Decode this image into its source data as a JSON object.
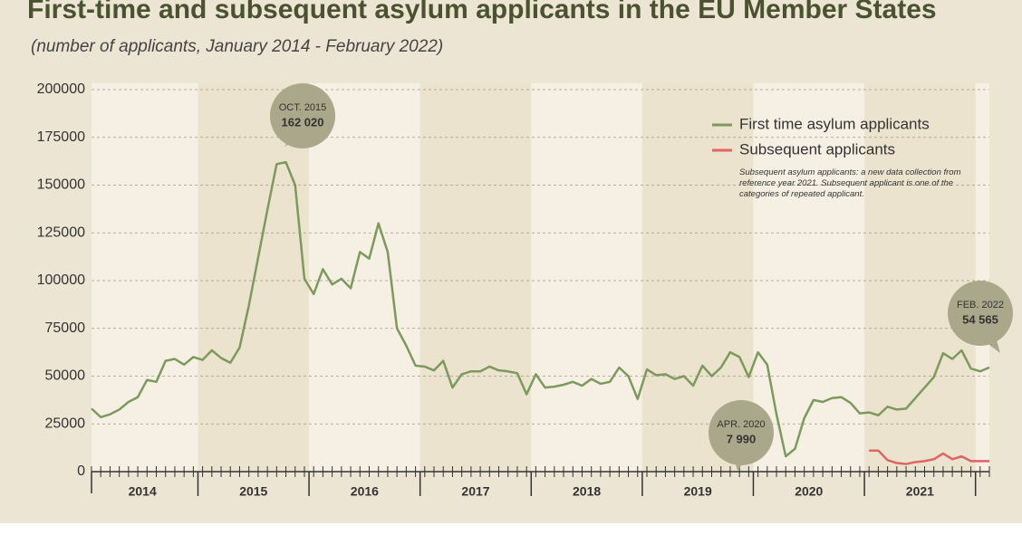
{
  "chart_data": {
    "type": "line",
    "title": "First-time and subsequent asylum applicants in the EU Member States",
    "subtitle": "(number of applicants, January 2014 - February 2022)",
    "categories": [
      null,
      null,
      null,
      null,
      null,
      null,
      "2014",
      null,
      null,
      null,
      null,
      null,
      null,
      null,
      null,
      null,
      null,
      null,
      "2015",
      null,
      null,
      null,
      null,
      null,
      null,
      null,
      null,
      null,
      null,
      null,
      "2016",
      null,
      null,
      null,
      null,
      null,
      null,
      null,
      null,
      null,
      null,
      null,
      "2017",
      null,
      null,
      null,
      null,
      null,
      null,
      null,
      null,
      null,
      null,
      null,
      "2018",
      null,
      null,
      null,
      null,
      null,
      null,
      null,
      null,
      null,
      null,
      null,
      "2019",
      null,
      null,
      null,
      null,
      null,
      null,
      null,
      null,
      null,
      null,
      null,
      "2020",
      null,
      null,
      null,
      null,
      null,
      null,
      null,
      null,
      null,
      null,
      null,
      "2021",
      null,
      null,
      null,
      null,
      null,
      null,
      null
    ],
    "series": [
      {
        "name": "First time asylum applicants",
        "color": "#7c9a5c",
        "values": [
          33000,
          28500,
          30000,
          32500,
          36500,
          39000,
          48000,
          47000,
          58000,
          59000,
          56000,
          60000,
          58500,
          63500,
          59500,
          57000,
          65000,
          87000,
          112000,
          137000,
          161000,
          162020,
          150000,
          101000,
          93000,
          106000,
          98000,
          101000,
          96000,
          115000,
          111500,
          130000,
          115000,
          75000,
          66000,
          55500,
          55000,
          53000,
          58000,
          44000,
          51000,
          52500,
          52500,
          55000,
          53000,
          52500,
          51500,
          40500,
          51000,
          44000,
          44500,
          45500,
          47000,
          45000,
          48500,
          46000,
          47000,
          54500,
          50000,
          38000,
          53500,
          50500,
          51000,
          48500,
          50000,
          45000,
          55500,
          50000,
          54500,
          62500,
          60000,
          49500,
          62500,
          56000,
          30000,
          7990,
          12000,
          28000,
          37500,
          36500,
          38500,
          39000,
          36000,
          30500,
          31000,
          29500,
          34000,
          32500,
          33000,
          38500,
          44000,
          49500,
          62000,
          59000,
          63500,
          54000,
          52500,
          54565
        ]
      },
      {
        "name": "Subsequent applicants",
        "color": "#e06464",
        "values": [
          null,
          null,
          null,
          null,
          null,
          null,
          null,
          null,
          null,
          null,
          null,
          null,
          null,
          null,
          null,
          null,
          null,
          null,
          null,
          null,
          null,
          null,
          null,
          null,
          null,
          null,
          null,
          null,
          null,
          null,
          null,
          null,
          null,
          null,
          null,
          null,
          null,
          null,
          null,
          null,
          null,
          null,
          null,
          null,
          null,
          null,
          null,
          null,
          null,
          null,
          null,
          null,
          null,
          null,
          null,
          null,
          null,
          null,
          null,
          null,
          null,
          null,
          null,
          null,
          null,
          null,
          null,
          null,
          null,
          null,
          null,
          null,
          null,
          null,
          null,
          null,
          null,
          null,
          null,
          null,
          null,
          null,
          null,
          null,
          11000,
          11000,
          6000,
          4500,
          4000,
          5000,
          5500,
          6500,
          9500,
          6500,
          8000,
          5500,
          5500,
          5500
        ]
      }
    ],
    "ylim": [
      0,
      200000
    ],
    "yticks": [
      0,
      25000,
      50000,
      75000,
      100000,
      125000,
      150000,
      175000,
      200000
    ],
    "grid": true,
    "legend": "upper right",
    "legend_note": "Subsequent asylum applicants: a new data collection from reference year 2021. Subsequent applicant is one of the categories of repeated applicant.",
    "annotations": [
      {
        "date": "OCT. 2015",
        "label": "162 020"
      },
      {
        "date": "APR. 2020",
        "label": "7 990"
      },
      {
        "date": "FEB. 2022",
        "label": "54 565"
      }
    ]
  }
}
